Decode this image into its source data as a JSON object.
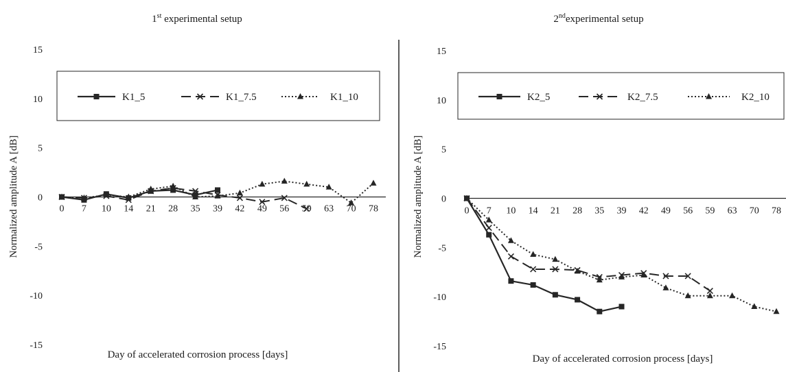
{
  "chart_data": [
    {
      "type": "line",
      "title": "1st experimental setup",
      "title_base": "1",
      "title_sup": "st",
      "title_rest": " experimental setup",
      "xlabel": "Day of accelerated corrosion process [days]",
      "ylabel": "Normalized amplitude A [dB]",
      "categories": [
        "0",
        "7",
        "10",
        "14",
        "21",
        "28",
        "35",
        "39",
        "42",
        "49",
        "56",
        "59",
        "63",
        "70",
        "78"
      ],
      "ylim": [
        -15,
        15
      ],
      "yticks": [
        15,
        10,
        5,
        0,
        -5,
        -10,
        -15
      ],
      "grid": false,
      "legend_position": "top",
      "series": [
        {
          "name": "K1_5",
          "style": "solid",
          "marker": "square",
          "values": [
            0,
            -0.3,
            0.3,
            -0.1,
            0.6,
            0.7,
            0.2,
            0.7,
            null,
            null,
            null,
            null,
            null,
            null,
            null
          ]
        },
        {
          "name": "K1_7.5",
          "style": "dashed",
          "marker": "x",
          "values": [
            0,
            -0.1,
            0.1,
            -0.3,
            0.6,
            0.9,
            0.6,
            0.2,
            -0.1,
            -0.5,
            -0.1,
            -1.2,
            null,
            null,
            null
          ]
        },
        {
          "name": "K1_10",
          "style": "dotted",
          "marker": "triangle",
          "values": [
            0,
            -0.1,
            0.2,
            0.0,
            0.8,
            1.1,
            0.0,
            0.1,
            0.4,
            1.3,
            1.6,
            1.3,
            1.0,
            -0.6,
            1.4
          ]
        }
      ]
    },
    {
      "type": "line",
      "title": "2nd experimental setup",
      "title_base": "2",
      "title_sup": "nd",
      "title_rest": "experimental setup",
      "xlabel": "Day of accelerated corrosion process [days]",
      "ylabel": "Normalized amplitude A [dB]",
      "categories": [
        "0",
        "7",
        "10",
        "14",
        "21",
        "28",
        "35",
        "39",
        "42",
        "49",
        "56",
        "59",
        "63",
        "70",
        "78"
      ],
      "ylim": [
        -15,
        15
      ],
      "yticks": [
        15,
        10,
        5,
        0,
        -5,
        -10,
        -15
      ],
      "grid": false,
      "legend_position": "top",
      "series": [
        {
          "name": "K2_5",
          "style": "solid",
          "marker": "square",
          "values": [
            0,
            -3.7,
            -8.4,
            -8.8,
            -9.8,
            -10.3,
            -11.5,
            -11.0,
            null,
            null,
            null,
            null,
            null,
            null,
            null
          ]
        },
        {
          "name": "K2_7.5",
          "style": "dashed",
          "marker": "x",
          "values": [
            0,
            -3.0,
            -5.9,
            -7.2,
            -7.2,
            -7.3,
            -8.0,
            -7.8,
            -7.6,
            -7.9,
            -7.9,
            -9.4,
            null,
            null,
            null
          ]
        },
        {
          "name": "K2_10",
          "style": "dotted",
          "marker": "triangle",
          "values": [
            0,
            -2.2,
            -4.3,
            -5.7,
            -6.2,
            -7.4,
            -8.3,
            -8.0,
            -7.8,
            -9.1,
            -9.9,
            -9.9,
            -9.9,
            -11.0,
            -11.5
          ]
        }
      ]
    }
  ],
  "colors": {
    "series": "#262626",
    "axis": "#262626"
  }
}
